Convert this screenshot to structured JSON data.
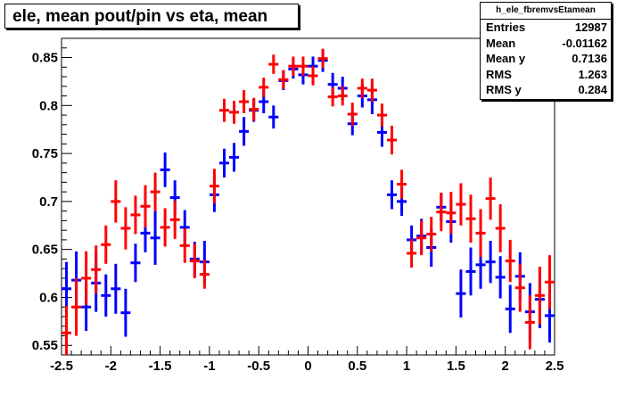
{
  "title": "ele, mean pout/pin vs eta, mean",
  "stats": {
    "name": "h_ele_fbremvsEtamean",
    "rows": [
      {
        "label": "Entries",
        "value": "12987"
      },
      {
        "label": "Mean",
        "value": "-0.01162"
      },
      {
        "label": "Mean y",
        "value": "0.7136"
      },
      {
        "label": "RMS",
        "value": "1.263"
      },
      {
        "label": "RMS y",
        "value": "0.284"
      }
    ]
  },
  "colors": {
    "blue": "#0000ff",
    "red": "#ff0000",
    "axis": "#000000"
  },
  "chart_data": {
    "type": "scatter",
    "title": "ele, mean pout/pin vs eta, mean",
    "xlim": [
      -2.5,
      2.5
    ],
    "ylim": [
      0.54,
      0.87
    ],
    "xticks": [
      -2.5,
      -2,
      -1.5,
      -1,
      -0.5,
      0,
      0.5,
      1,
      1.5,
      2,
      2.5
    ],
    "xtick_labels": [
      "-2.5",
      "-2",
      "-1.5",
      "-1",
      "-0.5",
      "0",
      "0.5",
      "1",
      "1.5",
      "2",
      "2.5"
    ],
    "yticks": [
      0.55,
      0.6,
      0.65,
      0.7,
      0.75,
      0.8,
      0.85
    ],
    "ytick_labels": [
      "0.55",
      "0.6",
      "0.65",
      "0.7",
      "0.75",
      "0.8",
      "0.85"
    ],
    "bin_half_width": 0.05,
    "series": [
      {
        "color": "#0000ff",
        "x": [
          -2.45,
          -2.35,
          -2.25,
          -2.15,
          -2.05,
          -1.95,
          -1.85,
          -1.75,
          -1.65,
          -1.55,
          -1.45,
          -1.35,
          -1.25,
          -1.15,
          -1.05,
          -0.95,
          -0.85,
          -0.75,
          -0.65,
          -0.55,
          -0.45,
          -0.35,
          -0.25,
          -0.15,
          -0.05,
          0.05,
          0.15,
          0.25,
          0.35,
          0.45,
          0.55,
          0.65,
          0.75,
          0.85,
          0.95,
          1.05,
          1.15,
          1.25,
          1.35,
          1.45,
          1.55,
          1.65,
          1.75,
          1.85,
          1.95,
          2.05,
          2.15,
          2.25,
          2.35,
          2.45
        ],
        "y": [
          0.609,
          0.618,
          0.59,
          0.615,
          0.602,
          0.609,
          0.584,
          0.636,
          0.667,
          0.662,
          0.733,
          0.704,
          0.673,
          0.64,
          0.637,
          0.707,
          0.74,
          0.746,
          0.773,
          0.795,
          0.804,
          0.788,
          0.826,
          0.838,
          0.832,
          0.841,
          0.847,
          0.822,
          0.818,
          0.781,
          0.81,
          0.806,
          0.772,
          0.707,
          0.7,
          0.66,
          0.664,
          0.652,
          0.694,
          0.679,
          0.604,
          0.627,
          0.634,
          0.637,
          0.621,
          0.588,
          0.622,
          0.585,
          0.598,
          0.581
        ],
        "err": [
          0.028,
          0.03,
          0.025,
          0.03,
          0.022,
          0.026,
          0.025,
          0.02,
          0.02,
          0.028,
          0.018,
          0.018,
          0.018,
          0.018,
          0.022,
          0.018,
          0.015,
          0.015,
          0.015,
          0.012,
          0.012,
          0.012,
          0.01,
          0.01,
          0.01,
          0.01,
          0.012,
          0.012,
          0.012,
          0.012,
          0.012,
          0.015,
          0.015,
          0.015,
          0.015,
          0.015,
          0.018,
          0.02,
          0.015,
          0.022,
          0.025,
          0.025,
          0.025,
          0.022,
          0.022,
          0.025,
          0.025,
          0.03,
          0.03,
          0.028
        ]
      },
      {
        "color": "#ff0000",
        "x": [
          -2.45,
          -2.35,
          -2.25,
          -2.15,
          -2.05,
          -1.95,
          -1.85,
          -1.75,
          -1.65,
          -1.55,
          -1.45,
          -1.35,
          -1.25,
          -1.15,
          -1.05,
          -0.95,
          -0.85,
          -0.75,
          -0.65,
          -0.55,
          -0.45,
          -0.35,
          -0.25,
          -0.15,
          -0.05,
          0.05,
          0.15,
          0.25,
          0.35,
          0.45,
          0.55,
          0.65,
          0.75,
          0.85,
          0.95,
          1.05,
          1.15,
          1.25,
          1.35,
          1.45,
          1.55,
          1.65,
          1.75,
          1.85,
          1.95,
          2.05,
          2.15,
          2.25,
          2.35,
          2.45
        ],
        "y": [
          0.563,
          0.59,
          0.62,
          0.629,
          0.655,
          0.7,
          0.672,
          0.686,
          0.695,
          0.71,
          0.673,
          0.681,
          0.654,
          0.638,
          0.624,
          0.716,
          0.795,
          0.793,
          0.804,
          0.796,
          0.819,
          0.843,
          0.827,
          0.841,
          0.841,
          0.831,
          0.849,
          0.809,
          0.81,
          0.791,
          0.818,
          0.816,
          0.79,
          0.764,
          0.718,
          0.646,
          0.662,
          0.666,
          0.689,
          0.688,
          0.697,
          0.682,
          0.667,
          0.703,
          0.672,
          0.638,
          0.61,
          0.574,
          0.602,
          0.616
        ],
        "err": [
          0.028,
          0.03,
          0.028,
          0.025,
          0.02,
          0.022,
          0.022,
          0.02,
          0.022,
          0.02,
          0.02,
          0.02,
          0.018,
          0.018,
          0.015,
          0.018,
          0.012,
          0.012,
          0.012,
          0.012,
          0.01,
          0.01,
          0.01,
          0.01,
          0.01,
          0.01,
          0.01,
          0.01,
          0.01,
          0.012,
          0.01,
          0.012,
          0.012,
          0.015,
          0.015,
          0.015,
          0.018,
          0.018,
          0.02,
          0.022,
          0.022,
          0.025,
          0.025,
          0.022,
          0.025,
          0.022,
          0.025,
          0.028,
          0.03,
          0.028
        ]
      }
    ]
  }
}
